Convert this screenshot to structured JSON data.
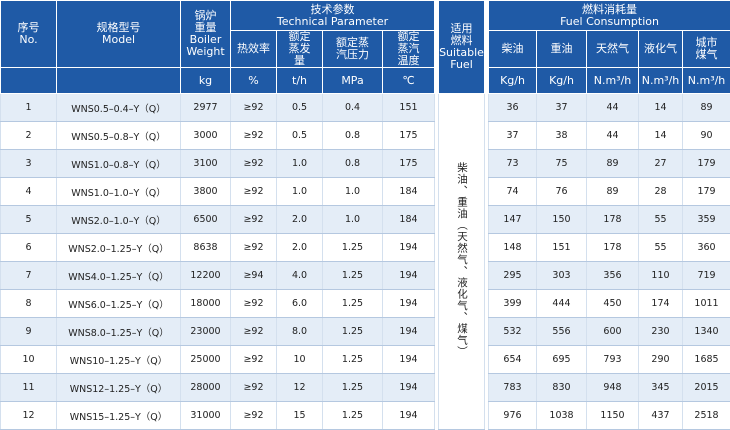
{
  "header": {
    "no_cn": "序号",
    "no_en": "No.",
    "model_cn": "规格型号",
    "model_en": "Model",
    "weight_cn": "锅炉重量",
    "weight_en": "Boiler Weight",
    "weight_unit": "kg",
    "tech_cn": "技术参数",
    "tech_en": "Technical Parameter",
    "efficiency": "热效率",
    "efficiency_unit": "%",
    "evaporation": "额定蒸发量",
    "evaporation_unit": "t/h",
    "pressure": "额定蒸汽压力",
    "pressure_unit": "MPa",
    "temperature": "额定蒸汽温度",
    "temperature_unit": "℃",
    "fuel_cn": "适用燃料",
    "fuel_en": "Suitable Fuel",
    "consumption_cn": "燃料消耗量",
    "consumption_en": "Fuel Consumption",
    "diesel": "柴油",
    "diesel_unit": "Kg/h",
    "heavy_oil": "重油",
    "heavy_oil_unit": "Kg/h",
    "natural_gas": "天然气",
    "natural_gas_unit": "N.m³/h",
    "lpg": "液化气",
    "lpg_unit": "N.m³/h",
    "city_gas": "城市煤气",
    "city_gas_unit": "N.m³/h"
  },
  "fuel_text": "柴油、重油（天然气、液化气、煤气）",
  "rows": [
    {
      "no": "1",
      "model": "WNS0.5–0.4–Y（Q）",
      "weight": "2977",
      "eff": "≥92",
      "evap": "0.5",
      "pressure": "0.4",
      "temp": "151",
      "diesel": "36",
      "heavy": "37",
      "natural": "44",
      "lpg": "14",
      "city": "89"
    },
    {
      "no": "2",
      "model": "WNS0.5–0.8–Y（Q）",
      "weight": "3000",
      "eff": "≥92",
      "evap": "0.5",
      "pressure": "0.8",
      "temp": "175",
      "diesel": "37",
      "heavy": "38",
      "natural": "44",
      "lpg": "14",
      "city": "90"
    },
    {
      "no": "3",
      "model": "WNS1.0–0.8–Y（Q）",
      "weight": "3100",
      "eff": "≥92",
      "evap": "1.0",
      "pressure": "0.8",
      "temp": "175",
      "diesel": "73",
      "heavy": "75",
      "natural": "89",
      "lpg": "27",
      "city": "179"
    },
    {
      "no": "4",
      "model": "WNS1.0–1.0–Y（Q）",
      "weight": "3800",
      "eff": "≥92",
      "evap": "1.0",
      "pressure": "1.0",
      "temp": "184",
      "diesel": "74",
      "heavy": "76",
      "natural": "89",
      "lpg": "28",
      "city": "179"
    },
    {
      "no": "5",
      "model": "WNS2.0–1.0–Y（Q）",
      "weight": "6500",
      "eff": "≥92",
      "evap": "2.0",
      "pressure": "1.0",
      "temp": "184",
      "diesel": "147",
      "heavy": "150",
      "natural": "178",
      "lpg": "55",
      "city": "359"
    },
    {
      "no": "6",
      "model": "WNS2.0–1.25–Y（Q）",
      "weight": "8638",
      "eff": "≥92",
      "evap": "2.0",
      "pressure": "1.25",
      "temp": "194",
      "diesel": "148",
      "heavy": "151",
      "natural": "178",
      "lpg": "55",
      "city": "360"
    },
    {
      "no": "7",
      "model": "WNS4.0–1.25–Y（Q）",
      "weight": "12200",
      "eff": "≥94",
      "evap": "4.0",
      "pressure": "1.25",
      "temp": "194",
      "diesel": "295",
      "heavy": "303",
      "natural": "356",
      "lpg": "110",
      "city": "719"
    },
    {
      "no": "8",
      "model": "WNS6.0–1.25–Y（Q）",
      "weight": "18000",
      "eff": "≥92",
      "evap": "6.0",
      "pressure": "1.25",
      "temp": "194",
      "diesel": "399",
      "heavy": "444",
      "natural": "450",
      "lpg": "174",
      "city": "1011"
    },
    {
      "no": "9",
      "model": "WNS8.0–1.25–Y（Q）",
      "weight": "23000",
      "eff": "≥92",
      "evap": "8.0",
      "pressure": "1.25",
      "temp": "194",
      "diesel": "532",
      "heavy": "556",
      "natural": "600",
      "lpg": "230",
      "city": "1340"
    },
    {
      "no": "10",
      "model": "WNS10–1.25–Y（Q）",
      "weight": "25000",
      "eff": "≥92",
      "evap": "10",
      "pressure": "1.25",
      "temp": "194",
      "diesel": "654",
      "heavy": "695",
      "natural": "793",
      "lpg": "290",
      "city": "1685"
    },
    {
      "no": "11",
      "model": "WNS12–1.25–Y（Q）",
      "weight": "28000",
      "eff": "≥92",
      "evap": "12",
      "pressure": "1.25",
      "temp": "194",
      "diesel": "783",
      "heavy": "830",
      "natural": "948",
      "lpg": "345",
      "city": "2015"
    },
    {
      "no": "12",
      "model": "WNS15–1.25–Y（Q）",
      "weight": "31000",
      "eff": "≥92",
      "evap": "15",
      "pressure": "1.25",
      "temp": "194",
      "diesel": "976",
      "heavy": "1038",
      "natural": "1150",
      "lpg": "437",
      "city": "2518"
    }
  ]
}
